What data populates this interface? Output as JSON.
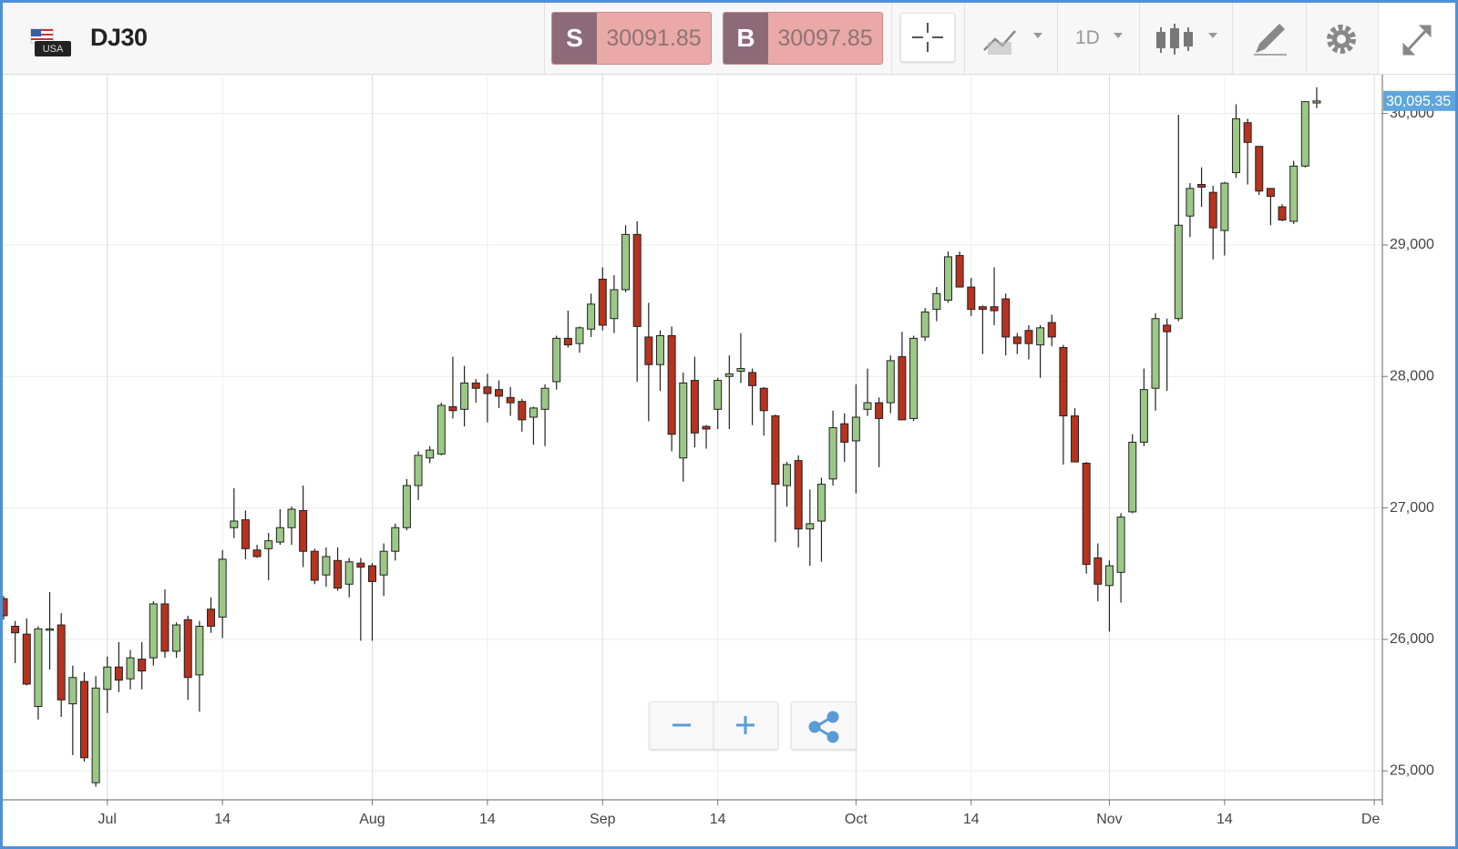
{
  "toolbar": {
    "symbol": "DJ30",
    "flag_label": "USA",
    "sell": {
      "label": "S",
      "price": 30091.85
    },
    "buy": {
      "label": "B",
      "price": 30097.85
    },
    "timeframe": "1D"
  },
  "chart_data": {
    "type": "candlestick",
    "categories": [
      null,
      null,
      null,
      null,
      null,
      null,
      null,
      null,
      null,
      "Jul",
      null,
      null,
      null,
      null,
      null,
      null,
      null,
      null,
      null,
      "14",
      null,
      null,
      null,
      null,
      null,
      null,
      null,
      null,
      null,
      null,
      null,
      null,
      "Aug",
      null,
      null,
      null,
      null,
      null,
      null,
      null,
      null,
      null,
      "14",
      null,
      null,
      null,
      null,
      null,
      null,
      null,
      null,
      null,
      "Sep",
      null,
      null,
      null,
      null,
      null,
      null,
      null,
      null,
      null,
      "14",
      null,
      null,
      null,
      null,
      null,
      null,
      null,
      null,
      null,
      null,
      null,
      "Oct",
      null,
      null,
      null,
      null,
      null,
      null,
      null,
      null,
      null,
      "14",
      null,
      null,
      null,
      null,
      null,
      null,
      null,
      null,
      null,
      null,
      null,
      "Nov",
      null,
      null,
      null,
      null,
      null,
      null,
      null,
      null,
      null,
      "14",
      null,
      null,
      null,
      null,
      null,
      null,
      null,
      null,
      null,
      null,
      null,
      null,
      "Dec"
    ],
    "open": [
      26310,
      26100,
      26040,
      25490,
      26070,
      26110,
      25510,
      25680,
      24910,
      25620,
      25790,
      25700,
      25850,
      25860,
      26270,
      25910,
      26150,
      25730,
      26230,
      26170,
      26850,
      26910,
      26680,
      26690,
      26740,
      26850,
      26980,
      26670,
      26490,
      26600,
      26420,
      26580,
      26560,
      26490,
      26670,
      26850,
      27170,
      27380,
      27410,
      27770,
      27750,
      27950,
      27920,
      27900,
      27840,
      27810,
      27690,
      27750,
      27960,
      28290,
      28250,
      28360,
      28740,
      28440,
      28660,
      29080,
      28300,
      28090,
      28310,
      27380,
      27970,
      27620,
      27750,
      28000,
      28040,
      28030,
      27910,
      27700,
      27170,
      27360,
      26840,
      26900,
      27220,
      27640,
      27510,
      27750,
      27800,
      27800,
      28150,
      27680,
      28300,
      28510,
      28580,
      28920,
      28680,
      28530,
      28530,
      28590,
      28300,
      28350,
      28240,
      28410,
      28220,
      27700,
      27340,
      26620,
      26410,
      26510,
      26970,
      27500,
      27910,
      28390,
      28440,
      29220,
      29460,
      29400,
      29110,
      29550,
      29930,
      29750,
      29430,
      29290,
      29180,
      29600,
      30080,
      null,
      null,
      null,
      null,
      null
    ],
    "high": [
      26330,
      26140,
      26160,
      26100,
      26360,
      26200,
      25800,
      25750,
      25720,
      25870,
      25980,
      25920,
      25980,
      26290,
      26380,
      26130,
      26180,
      26140,
      26320,
      26680,
      27150,
      26980,
      26720,
      26810,
      26990,
      27010,
      27170,
      26690,
      26700,
      26700,
      26620,
      26620,
      26580,
      26730,
      26880,
      27220,
      27430,
      27470,
      27800,
      28150,
      28080,
      27980,
      28020,
      27970,
      27920,
      27830,
      27770,
      27940,
      28310,
      28500,
      28380,
      28630,
      28830,
      28770,
      29150,
      29180,
      28560,
      28350,
      28380,
      28030,
      28150,
      27630,
      27990,
      28160,
      28330,
      28060,
      27920,
      27710,
      27350,
      27400,
      27140,
      27230,
      27740,
      27720,
      27940,
      28060,
      27840,
      28160,
      28340,
      28310,
      28520,
      28680,
      28950,
      28950,
      28750,
      28540,
      28830,
      28630,
      28330,
      28390,
      28390,
      28470,
      28240,
      27760,
      27350,
      26730,
      26600,
      26960,
      27560,
      28060,
      28480,
      28440,
      29990,
      29470,
      29590,
      29450,
      29480,
      30070,
      29960,
      29750,
      29430,
      29310,
      29640,
      30090,
      30200,
      null,
      null,
      null,
      null,
      null
    ],
    "low": [
      26150,
      25820,
      25650,
      25390,
      25770,
      25410,
      25120,
      25070,
      24880,
      25440,
      25600,
      25620,
      25620,
      25800,
      25860,
      25860,
      25540,
      25450,
      26050,
      26010,
      26770,
      26610,
      26620,
      26450,
      26720,
      26720,
      26550,
      26420,
      26400,
      26370,
      26320,
      25990,
      25990,
      26330,
      26600,
      26830,
      27060,
      27340,
      27400,
      27680,
      27620,
      27800,
      27650,
      27760,
      27700,
      27580,
      27480,
      27470,
      27900,
      28220,
      28180,
      28300,
      28350,
      28330,
      28640,
      27960,
      27660,
      27890,
      27430,
      27200,
      27460,
      27450,
      27600,
      27600,
      27950,
      27630,
      27550,
      26740,
      27010,
      26700,
      26560,
      26590,
      27170,
      27350,
      27110,
      27700,
      27310,
      27720,
      27670,
      27660,
      28270,
      28420,
      28560,
      28680,
      28460,
      28170,
      28390,
      28160,
      28170,
      28130,
      27990,
      28230,
      27330,
      27350,
      26500,
      26290,
      26060,
      26280,
      26960,
      27470,
      27740,
      27890,
      28420,
      29060,
      29290,
      28890,
      28920,
      29510,
      29460,
      29380,
      29150,
      29180,
      29160,
      29590,
      30040,
      null,
      null,
      null,
      null,
      null
    ],
    "close": [
      26180,
      26050,
      25660,
      26080,
      26080,
      25540,
      25710,
      25100,
      25630,
      25790,
      25690,
      25860,
      25760,
      26270,
      25910,
      26110,
      25710,
      26100,
      26100,
      26610,
      26900,
      26690,
      26630,
      26750,
      26850,
      26990,
      26670,
      26450,
      26630,
      26390,
      26590,
      26550,
      26440,
      26670,
      26850,
      27170,
      27400,
      27440,
      27780,
      27740,
      27950,
      27910,
      27870,
      27850,
      27800,
      27670,
      27760,
      27910,
      28290,
      28240,
      28370,
      28550,
      28390,
      28660,
      29080,
      28380,
      28090,
      28310,
      27560,
      27950,
      27570,
      27600,
      27970,
      28020,
      28060,
      27930,
      27740,
      27180,
      27330,
      26840,
      26880,
      27180,
      27610,
      27500,
      27690,
      27800,
      27680,
      28120,
      27670,
      28290,
      28490,
      28630,
      28910,
      28680,
      28510,
      28510,
      28500,
      28300,
      28250,
      28250,
      28370,
      28300,
      27700,
      27350,
      26570,
      26420,
      26560,
      26930,
      27500,
      27900,
      28440,
      28340,
      29150,
      29430,
      29440,
      29130,
      29470,
      29960,
      29780,
      29410,
      29370,
      29190,
      29600,
      30090,
      30095,
      null,
      null,
      null,
      null,
      null
    ],
    "up_color": "#9cc887",
    "down_color": "#b5331f",
    "ylim": [
      24780,
      30295
    ],
    "yticks": [
      {
        "value": 25000,
        "label": "25,000"
      },
      {
        "value": 26000,
        "label": "26,000"
      },
      {
        "value": 27000,
        "label": "27,000"
      },
      {
        "value": 28000,
        "label": "28,000"
      },
      {
        "value": 29000,
        "label": "29,000"
      },
      {
        "value": 30000,
        "label": "30,000"
      }
    ],
    "y_axis_side": "right",
    "grid": true,
    "last_price": {
      "value": 30095.35,
      "label": "30,095.35"
    }
  }
}
